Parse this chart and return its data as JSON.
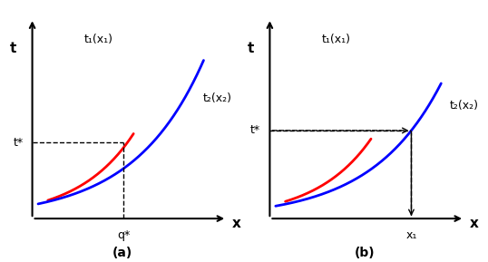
{
  "fig_width": 5.38,
  "fig_height": 2.89,
  "background_color": "#ffffff",
  "curve1_color": "#ff0000",
  "curve2_color": "#0000ff",
  "dashed_color": "#000000",
  "arrow_color": "#000000",
  "axis_color": "#000000",
  "label_t1": "t",
  "label_x": "x",
  "panel_a_label": "(a)",
  "panel_b_label": "(b)",
  "t1_label": "t₁(x₁)",
  "t2_label": "t₂(x₂)",
  "t_star_label": "t*",
  "q_star_label": "q*",
  "x1_label": "x₁",
  "x2_label": "x₂"
}
